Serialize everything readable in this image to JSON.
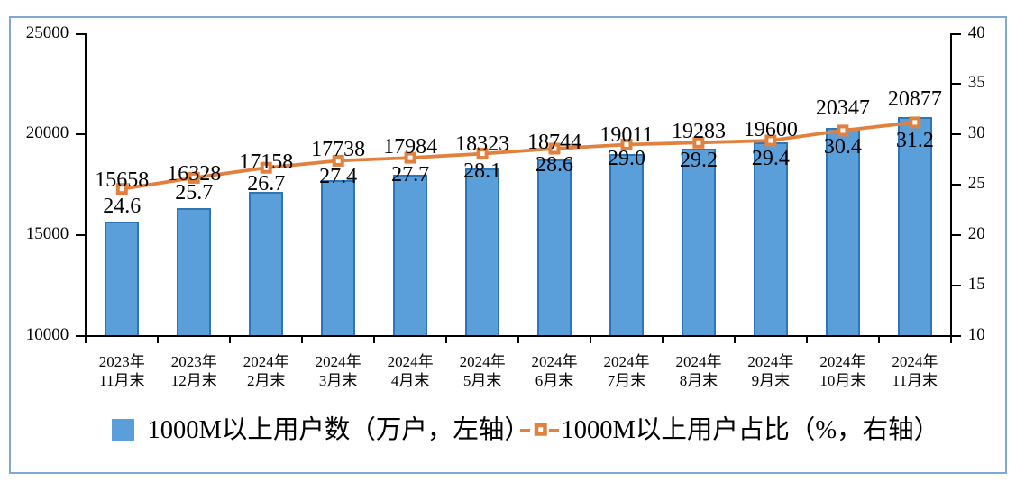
{
  "colors": {
    "bar_fill": "#5b9fda",
    "bar_border": "#2e75b6",
    "line": "#e2803e",
    "marker_fill": "#ffffff",
    "axis": "#000000",
    "frame_border": "#7fa8d4",
    "text": "#000000",
    "background": "#ffffff"
  },
  "legend": {
    "bars_label": "1000M以上用户数（万户，左轴）",
    "line_label": "1000M以上用户占比（%，右轴）"
  },
  "chart_data": {
    "type": "combo-bar-line",
    "categories": [
      [
        "2023年",
        "11月末"
      ],
      [
        "2023年",
        "12月末"
      ],
      [
        "2024年",
        "2月末"
      ],
      [
        "2024年",
        "3月末"
      ],
      [
        "2024年",
        "4月末"
      ],
      [
        "2024年",
        "5月末"
      ],
      [
        "2024年",
        "6月末"
      ],
      [
        "2024年",
        "7月末"
      ],
      [
        "2024年",
        "8月末"
      ],
      [
        "2024年",
        "9月末"
      ],
      [
        "2024年",
        "10月末"
      ],
      [
        "2024年",
        "11月末"
      ]
    ],
    "series": [
      {
        "name": "1000M以上用户数（万户，左轴）",
        "type": "bar",
        "axis": "left",
        "values": [
          15658,
          16328,
          17158,
          17738,
          17984,
          18323,
          18744,
          19011,
          19283,
          19600,
          20347,
          20877
        ],
        "labels": [
          "15658",
          "16328",
          "17158",
          "17738",
          "17984",
          "18323",
          "18744",
          "19011",
          "19283",
          "19600",
          "20347",
          "20877"
        ]
      },
      {
        "name": "1000M以上用户占比（%，右轴）",
        "type": "line",
        "axis": "right",
        "values": [
          24.6,
          25.7,
          26.7,
          27.4,
          27.7,
          28.1,
          28.6,
          29.0,
          29.2,
          29.4,
          30.4,
          31.2
        ],
        "labels": [
          "24.6",
          "25.7",
          "26.7",
          "27.4",
          "27.7",
          "28.1",
          "28.6",
          "29.0",
          "29.2",
          "29.4",
          "30.4",
          "31.2"
        ]
      }
    ],
    "left_axis": {
      "min": 10000,
      "max": 25000,
      "step": 5000,
      "tick_labels": [
        "10000",
        "15000",
        "20000",
        "25000"
      ]
    },
    "right_axis": {
      "min": 10,
      "max": 40,
      "step": 5,
      "tick_labels": [
        "10",
        "15",
        "20",
        "25",
        "30",
        "35",
        "40"
      ]
    },
    "title": "",
    "grid": false,
    "legend_position": "bottom",
    "value_label_dy": [
      -2,
      4,
      2,
      -4,
      -4,
      -2,
      1,
      -2,
      -4,
      -4,
      -17,
      -18
    ],
    "pct_label_dy": [
      11,
      9,
      10,
      10,
      11,
      12,
      10,
      8,
      12,
      12,
      10,
      12
    ]
  }
}
